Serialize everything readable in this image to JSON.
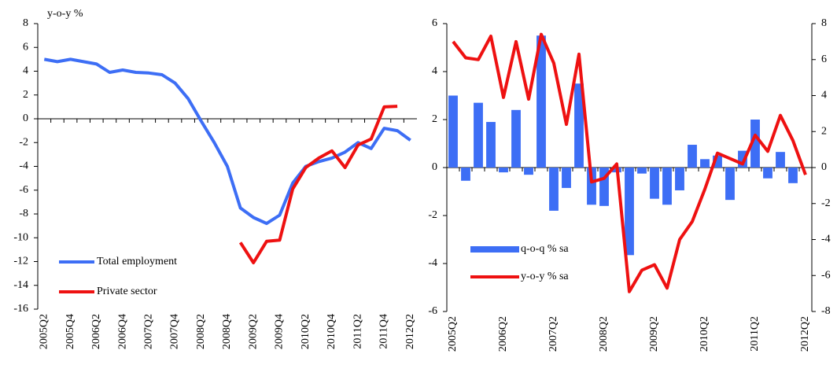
{
  "chart_data": [
    {
      "type": "line",
      "y_label": "y-o-y %",
      "categories": [
        "2005Q2",
        null,
        "2005Q4",
        null,
        "2006Q2",
        null,
        "2006Q4",
        null,
        "2007Q2",
        null,
        "2007Q4",
        null,
        "2008Q2",
        null,
        "2008Q4",
        null,
        "2009Q2",
        null,
        "2009Q4",
        null,
        "2010Q2",
        null,
        "2010Q4",
        null,
        "2011Q2",
        null,
        "2011Q4",
        null,
        "2012Q2"
      ],
      "series": [
        {
          "name": "Total employment",
          "color": "#3d6ef5",
          "values": [
            5.0,
            4.8,
            5.0,
            4.8,
            4.6,
            3.9,
            4.1,
            3.9,
            3.85,
            3.7,
            3.0,
            1.7,
            -0.2,
            -2.0,
            -4.0,
            -7.5,
            -8.3,
            -8.8,
            -8.1,
            -5.4,
            -4.0,
            -3.6,
            -3.3,
            -2.8,
            -2.0,
            -2.5,
            -0.8,
            -1.0,
            -1.8
          ]
        },
        {
          "name": "Private sector",
          "color": "#ee1111",
          "values": [
            null,
            null,
            null,
            null,
            null,
            null,
            null,
            null,
            null,
            null,
            null,
            null,
            null,
            null,
            null,
            -10.4,
            -12.1,
            -10.3,
            -10.2,
            -5.9,
            -4.1,
            -3.3,
            -2.7,
            -4.1,
            -2.2,
            -1.7,
            1.0,
            1.05,
            null
          ]
        }
      ],
      "ylim": [
        -16,
        8
      ],
      "yticks": [
        -16,
        -14,
        -12,
        -10,
        -8,
        -6,
        -4,
        -2,
        0,
        2,
        4,
        6,
        8
      ],
      "legend": "lower left"
    },
    {
      "type": "bar-line",
      "categories": [
        "2005Q2",
        null,
        null,
        null,
        "2006Q2",
        null,
        null,
        null,
        "2007Q2",
        null,
        null,
        null,
        "2008Q2",
        null,
        null,
        null,
        "2009Q2",
        null,
        null,
        null,
        "2010Q2",
        null,
        null,
        null,
        "2011Q2",
        null,
        null,
        null,
        "2012Q2"
      ],
      "series": [
        {
          "name": "q-o-q % sa",
          "color": "#3d6ef5",
          "axis": "y",
          "values": [
            3.0,
            -0.55,
            2.7,
            1.9,
            -0.2,
            2.4,
            -0.3,
            5.5,
            -1.8,
            -0.85,
            3.5,
            -1.55,
            -1.6,
            -0.2,
            -3.65,
            -0.25,
            -1.3,
            -1.55,
            -0.95,
            0.95,
            0.35,
            0.5,
            -1.35,
            0.7,
            2.0,
            -0.45,
            0.65,
            -0.65,
            null
          ]
        },
        {
          "name": "y-o-y % sa",
          "color": "#ee1111",
          "axis": "y2",
          "values": [
            7.0,
            6.1,
            6.0,
            7.3,
            3.9,
            7.0,
            3.8,
            7.4,
            5.8,
            2.4,
            6.3,
            -0.8,
            -0.6,
            0.2,
            -6.9,
            -5.7,
            -5.4,
            -6.7,
            -4.0,
            -3.0,
            -1.2,
            0.8,
            0.5,
            0.2,
            1.8,
            0.9,
            2.9,
            1.5,
            -0.4
          ]
        }
      ],
      "ylim": [
        -6,
        6
      ],
      "yticks": [
        -6,
        -4,
        -2,
        0,
        2,
        4,
        6
      ],
      "y2lim": [
        -8,
        8
      ],
      "y2ticks": [
        -8,
        -6,
        -4,
        -2,
        0,
        2,
        4,
        6,
        8
      ],
      "legend": "lower left"
    }
  ]
}
